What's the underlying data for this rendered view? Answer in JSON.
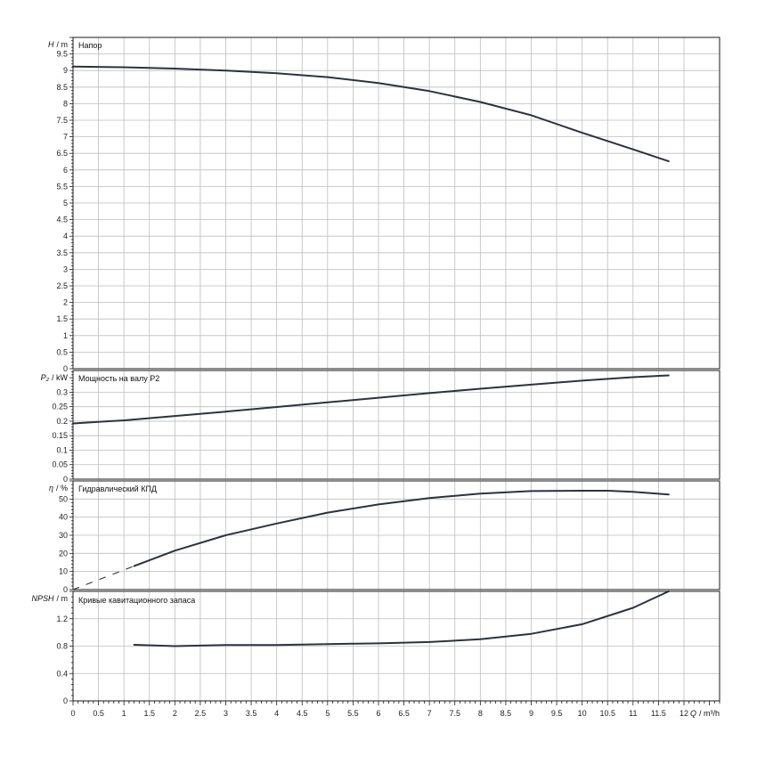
{
  "chart_data": [
    {
      "type": "line",
      "panel": "head",
      "title": "Напор",
      "ylabel_symbol": "H",
      "ylabel_unit": "/ m",
      "ylim": [
        0,
        10
      ],
      "yticks": [
        0,
        0.5,
        1,
        1.5,
        2,
        2.5,
        3,
        3.5,
        4,
        4.5,
        5,
        5.5,
        6,
        6.5,
        7,
        7.5,
        8,
        8.5,
        9,
        9.5
      ],
      "ytick_labels": [
        "0",
        "0.5",
        "1",
        "1.5",
        "2",
        "2.5",
        "3",
        "3.5",
        "4",
        "4.5",
        "5",
        "5.5",
        "6",
        "6.5",
        "7",
        "7.5",
        "8",
        "8.5",
        "9",
        "9.5"
      ],
      "grid": true,
      "series": [
        {
          "x": [
            0,
            1,
            2,
            3,
            4,
            5,
            6,
            7,
            8,
            9,
            10,
            11,
            11.7
          ],
          "y": [
            9.12,
            9.1,
            9.06,
            9.0,
            8.92,
            8.8,
            8.62,
            8.38,
            8.05,
            7.65,
            7.12,
            6.62,
            6.26
          ]
        }
      ]
    },
    {
      "type": "line",
      "panel": "power",
      "title": "Мощность на валу P2",
      "ylabel_symbol": "P₂",
      "ylabel_unit": "/ kW",
      "ylim": [
        0,
        0.375
      ],
      "yticks": [
        0,
        0.05,
        0.1,
        0.15,
        0.2,
        0.25,
        0.3
      ],
      "ytick_labels": [
        "0",
        "0.05",
        "0.1",
        "0.15",
        "0.2",
        "0.25",
        "0.3"
      ],
      "grid": true,
      "series": [
        {
          "x": [
            0,
            1,
            2,
            3,
            4,
            5,
            6,
            7,
            8,
            9,
            10,
            11,
            11.7
          ],
          "y": [
            0.192,
            0.203,
            0.218,
            0.233,
            0.249,
            0.265,
            0.281,
            0.297,
            0.312,
            0.326,
            0.34,
            0.352,
            0.358
          ]
        }
      ]
    },
    {
      "type": "line",
      "panel": "efficiency",
      "title": "Гидравлический КПД",
      "ylabel_symbol": "η",
      "ylabel_unit": "/ %",
      "ylim": [
        0,
        60
      ],
      "yticks": [
        0,
        10,
        20,
        30,
        40,
        50
      ],
      "ytick_labels": [
        "0",
        "10",
        "20",
        "30",
        "40",
        "50"
      ],
      "grid": true,
      "series": [
        {
          "x": [
            1.2,
            2,
            3,
            4,
            5,
            6,
            7,
            8,
            9,
            10,
            10.5,
            11,
            11.7
          ],
          "y": [
            13,
            21.5,
            30,
            36.5,
            42.5,
            47,
            50.5,
            53,
            54.4,
            54.6,
            54.6,
            54,
            52.5
          ]
        },
        {
          "x": [
            0,
            1.2
          ],
          "y": [
            0,
            13
          ],
          "dashed": true
        }
      ]
    },
    {
      "type": "line",
      "panel": "npsh",
      "title": "Кривые кавитационного запаса",
      "ylabel_symbol": "NPSH",
      "ylabel_unit": "/ m",
      "ylim": [
        0,
        1.6
      ],
      "yticks": [
        0,
        0.4,
        0.8,
        1.2
      ],
      "ytick_labels": [
        "0",
        "0.4",
        "0.8",
        "1.2"
      ],
      "grid": true,
      "series": [
        {
          "x": [
            1.2,
            2,
            3,
            4,
            5,
            6,
            7,
            8,
            9,
            10,
            11,
            11.7
          ],
          "y": [
            0.82,
            0.8,
            0.815,
            0.815,
            0.83,
            0.84,
            0.86,
            0.9,
            0.98,
            1.12,
            1.36,
            1.6
          ]
        }
      ]
    }
  ],
  "x_axis": {
    "xlim": [
      0,
      12.7
    ],
    "ticks": [
      0,
      0.5,
      1,
      1.5,
      2,
      2.5,
      3,
      3.5,
      4,
      4.5,
      5,
      5.5,
      6,
      6.5,
      7,
      7.5,
      8,
      8.5,
      9,
      9.5,
      10,
      10.5,
      11,
      11.5,
      12
    ],
    "tick_labels": [
      "0",
      "0.5",
      "1",
      "1.5",
      "2",
      "2.5",
      "3",
      "3.5",
      "4",
      "4.5",
      "5",
      "5.5",
      "6",
      "6.5",
      "7",
      "7.5",
      "8",
      "8.5",
      "9",
      "9.5",
      "10",
      "10.5",
      "11",
      "11.5",
      "12"
    ],
    "label_symbol": "Q",
    "label_unit": "/ m³/h"
  },
  "colors": {
    "curve": "#2b3340",
    "grid": "#bdbdbd",
    "frame": "#1a1a1a",
    "background": "#ffffff"
  }
}
